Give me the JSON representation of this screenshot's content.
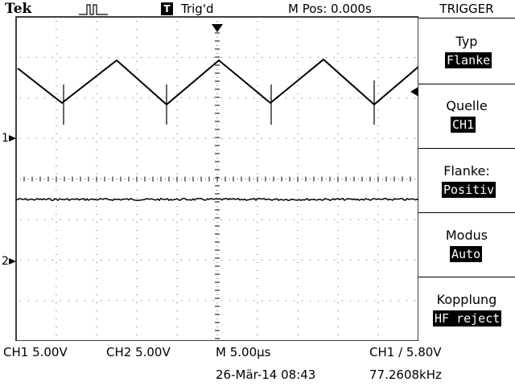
{
  "header": {
    "brand": "Tek",
    "trigger_badge": "T",
    "trigger_status": "Trig'd",
    "m_pos": "M Pos: 0.000s"
  },
  "menu": {
    "title": "TRIGGER",
    "items": [
      {
        "label": "Typ",
        "value": "Flanke"
      },
      {
        "label": "Quelle",
        "value": "CH1"
      },
      {
        "label": "Flanke:",
        "value": "Positiv"
      },
      {
        "label": "Modus",
        "value": "Auto"
      },
      {
        "label": "Kopplung",
        "value": "HF reject"
      }
    ]
  },
  "channel_markers": {
    "ch1": "1",
    "ch2": "2"
  },
  "status_bar": {
    "ch1_scale": "CH1  5.00V",
    "ch2_scale": "CH2  5.00V",
    "timebase": "M 5.00µs",
    "trigger_level": "CH1 ∕ 5.80V",
    "date": "26-Mär-14 08:43",
    "frequency": "77.2608kHz"
  },
  "colors": {
    "foreground": "#000000",
    "background": "#ffffff"
  }
}
